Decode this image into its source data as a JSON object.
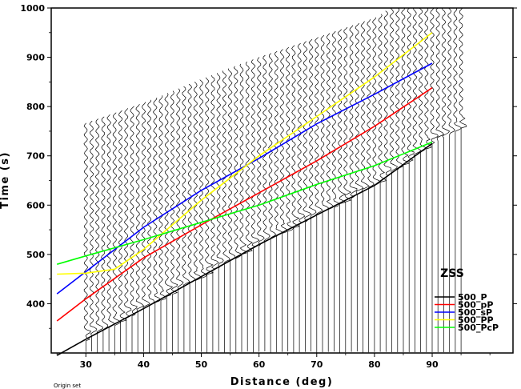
{
  "chart_data": {
    "type": "line",
    "title": "",
    "station": "ZSS",
    "xlabel": "Distance (deg)",
    "ylabel": "Time (s)",
    "xlim": [
      24,
      104
    ],
    "ylim": [
      300,
      1000
    ],
    "xticks": [
      30,
      40,
      50,
      60,
      70,
      80,
      90
    ],
    "yticks": [
      400,
      500,
      600,
      700,
      800,
      900,
      1000
    ],
    "footer": "Origin set",
    "legend_position": "bottom-right",
    "series": [
      {
        "name": "500_P",
        "color": "#000000",
        "x": [
          25,
          30,
          40,
          50,
          60,
          70,
          80,
          90
        ],
        "y": [
          295,
          328,
          390,
          455,
          520,
          580,
          640,
          725
        ]
      },
      {
        "name": "500_pP",
        "color": "#ff0000",
        "x": [
          25,
          30,
          40,
          50,
          60,
          70,
          80,
          90
        ],
        "y": [
          365,
          410,
          493,
          560,
          625,
          690,
          760,
          838
        ]
      },
      {
        "name": "500_sP",
        "color": "#0000ff",
        "x": [
          25,
          30,
          40,
          50,
          60,
          70,
          80,
          90
        ],
        "y": [
          420,
          465,
          555,
          630,
          695,
          765,
          825,
          888
        ]
      },
      {
        "name": "500_PP",
        "color": "#ffff00",
        "x": [
          25,
          30,
          35,
          40,
          50,
          60,
          70,
          80,
          90
        ],
        "y": [
          460,
          462,
          470,
          510,
          610,
          700,
          780,
          860,
          950
        ]
      },
      {
        "name": "500_PcP",
        "color": "#00ff00",
        "x": [
          25,
          30,
          40,
          50,
          60,
          70,
          80,
          90
        ],
        "y": [
          480,
          497,
          530,
          565,
          600,
          642,
          680,
          728
        ]
      }
    ],
    "seismogram_distances_deg": [
      30,
      31,
      32,
      33,
      34,
      35,
      36,
      37,
      38,
      39,
      40,
      41,
      42,
      43,
      44,
      45,
      46,
      47,
      48,
      49,
      50,
      51,
      52,
      53,
      54,
      55,
      56,
      57,
      58,
      59,
      60,
      61,
      62,
      63,
      64,
      65,
      66,
      67,
      68,
      69,
      70,
      71,
      72,
      73,
      74,
      75,
      76,
      77,
      78,
      79,
      80,
      81,
      82,
      83,
      84,
      85,
      86,
      87,
      88,
      89,
      90,
      91,
      92,
      93,
      94,
      95
    ]
  }
}
